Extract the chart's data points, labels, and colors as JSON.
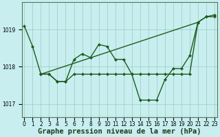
{
  "xlabel": "Graphe pression niveau de la mer (hPa)",
  "bg_color": "#c8eef0",
  "plot_bg_color": "#c8eef0",
  "grid_color": "#99ccbb",
  "line_color": "#1a5c1a",
  "marker": "D",
  "marker_size": 2.0,
  "line_width": 1.0,
  "ylim": [
    1016.65,
    1019.75
  ],
  "xlim": [
    -0.3,
    23.3
  ],
  "yticks": [
    1017,
    1018,
    1019
  ],
  "xticks": [
    0,
    1,
    2,
    3,
    4,
    5,
    6,
    7,
    8,
    9,
    10,
    11,
    12,
    13,
    14,
    15,
    16,
    17,
    18,
    19,
    20,
    21,
    22,
    23
  ],
  "tick_fontsize": 5.5,
  "xlabel_fontsize": 7.5,
  "series": [
    {
      "x": [
        0,
        1,
        2,
        3,
        4,
        5,
        6,
        7,
        8,
        9,
        10,
        11,
        12,
        13,
        14,
        15,
        16,
        17,
        18,
        19,
        20,
        21,
        22,
        23
      ],
      "y": [
        1019.1,
        1018.55,
        1017.8,
        1017.8,
        1017.6,
        1017.6,
        1018.2,
        1018.35,
        1018.25,
        1018.6,
        1018.55,
        1018.2,
        1018.2,
        1017.8,
        1017.1,
        1017.1,
        1017.1,
        1017.65,
        1017.95,
        1017.95,
        1018.3,
        1019.2,
        1019.35,
        1019.35
      ]
    },
    {
      "x": [
        2,
        3,
        4,
        5,
        6,
        7,
        8,
        9,
        10,
        11,
        12,
        13,
        14,
        15,
        16,
        17,
        18,
        19,
        20,
        21,
        22,
        23
      ],
      "y": [
        1017.8,
        1017.8,
        1017.6,
        1017.6,
        1017.8,
        1017.8,
        1017.8,
        1017.8,
        1017.8,
        1017.8,
        1017.8,
        1017.8,
        1017.8,
        1017.8,
        1017.8,
        1017.8,
        1017.8,
        1017.8,
        1017.8,
        1019.2,
        1019.35,
        1019.4
      ]
    },
    {
      "x": [
        2,
        21
      ],
      "y": [
        1017.8,
        1019.2
      ]
    }
  ]
}
